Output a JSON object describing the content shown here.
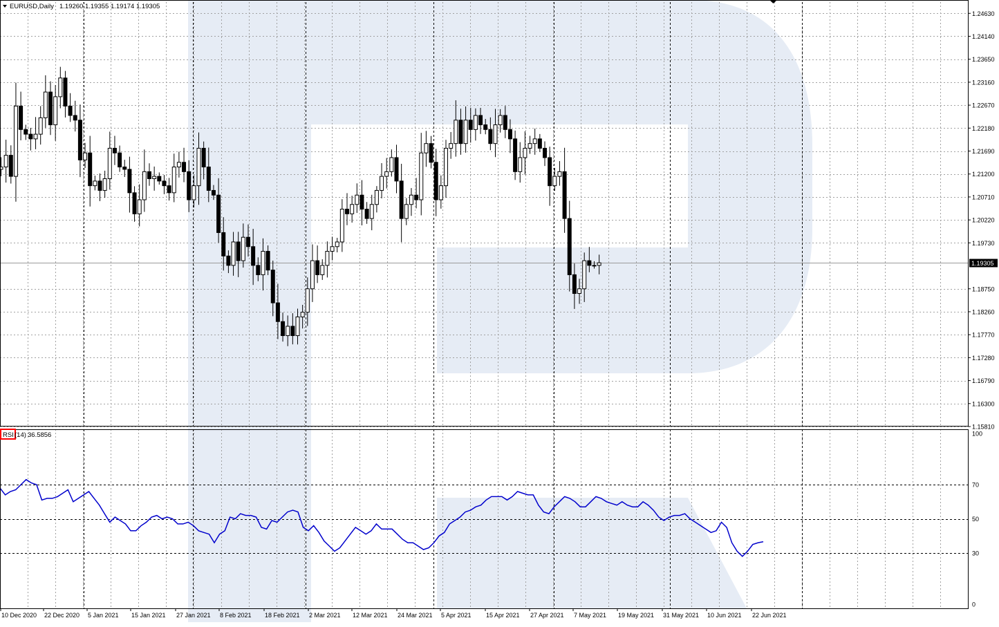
{
  "header": {
    "symbol": "EURUSD,Daily",
    "ohlc": "1.19260 1.19355 1.19174 1.19305"
  },
  "indicator": {
    "name": "RSI",
    "params": "(14)",
    "value": "36.5856"
  },
  "current_price_label": "1.19305",
  "colors": {
    "background": "#ffffff",
    "grid": "#a0a0a0",
    "candle": "#000000",
    "rsi_line": "#0000cc",
    "watermark": "#e6ecf5",
    "indicator_box": "#ff0000"
  },
  "chart_data": [
    {
      "type": "candlestick",
      "title": "EURUSD,Daily",
      "y_ticks": [
        1.2463,
        1.2414,
        1.2365,
        1.2316,
        1.2267,
        1.2218,
        1.2169,
        1.212,
        1.2071,
        1.2022,
        1.1973,
        1.1875,
        1.1826,
        1.1777,
        1.1728,
        1.1679,
        1.163,
        1.1581
      ],
      "y_tick_labels": [
        "1.24630",
        "1.24140",
        "1.23650",
        "1.23160",
        "1.22670",
        "1.22180",
        "1.21690",
        "1.21200",
        "1.20710",
        "1.20220",
        "1.19730",
        "1.18750",
        "1.18260",
        "1.17770",
        "1.17280",
        "1.16790",
        "1.16300",
        "1.15810"
      ],
      "ylim": [
        1.1581,
        1.2487
      ],
      "x_tick_labels": [
        "10 Dec 2020",
        "22 Dec 2020",
        "5 Jan 2021",
        "15 Jan 2021",
        "27 Jan 2021",
        "8 Feb 2021",
        "18 Feb 2021",
        "2 Mar 2021",
        "12 Mar 2021",
        "24 Mar 2021",
        "5 Apr 2021",
        "15 Apr 2021",
        "27 Apr 2021",
        "7 May 2021",
        "19 May 2021",
        "31 May 2021",
        "10 Jun 2021",
        "22 Jun 2021"
      ],
      "close_path": [
        1.213,
        1.2135,
        1.216,
        1.2115,
        1.2265,
        1.2215,
        1.2205,
        1.2195,
        1.2205,
        1.224,
        1.2295,
        1.2225,
        1.2285,
        1.2325,
        1.2265,
        1.2245,
        1.2235,
        1.215,
        1.2165,
        1.2095,
        1.2105,
        1.2085,
        1.211,
        1.2175,
        1.2165,
        1.2135,
        1.213,
        1.208,
        1.2035,
        1.2065,
        1.2125,
        1.211,
        1.2115,
        1.2105,
        1.2095,
        1.208,
        1.2135,
        1.2145,
        1.2125,
        1.2065,
        1.2095,
        1.2175,
        1.2135,
        1.2085,
        1.2075,
        1.1995,
        1.1945,
        1.1925,
        1.1975,
        1.1935,
        1.1985,
        1.1965,
        1.1925,
        1.1905,
        1.1955,
        1.1915,
        1.1845,
        1.1805,
        1.1775,
        1.1795,
        1.1775,
        1.1815,
        1.1825,
        1.1875,
        1.1935,
        1.1905,
        1.1925,
        1.1955,
        1.1965,
        1.1975,
        1.2045,
        1.2035,
        1.2055,
        1.2075,
        1.2045,
        1.2025,
        1.2055,
        1.2085,
        1.2115,
        1.2125,
        1.2155,
        1.2105,
        1.2025,
        1.2055,
        1.2075,
        1.2065,
        1.2165,
        1.2185,
        1.2145,
        1.2065,
        1.2095,
        1.2175,
        1.2185,
        1.2235,
        1.2185,
        1.2235,
        1.2215,
        1.2245,
        1.2225,
        1.2215,
        1.2185,
        1.2225,
        1.2245,
        1.2215,
        1.2195,
        1.2125,
        1.2155,
        1.2175,
        1.2185,
        1.2195,
        1.2175,
        1.2155,
        1.2095,
        1.2115,
        1.2125,
        1.2025,
        1.1905,
        1.1865,
        1.1875,
        1.1935,
        1.1925,
        1.1925,
        1.19305
      ]
    },
    {
      "type": "line",
      "title": "RSI(14) 36.5856",
      "series": [
        {
          "name": "RSI(14)",
          "values": [
            68,
            64,
            66,
            67,
            70,
            73,
            71,
            70,
            61,
            62,
            62,
            63,
            65,
            67,
            60,
            62,
            64,
            66,
            62,
            58,
            53,
            48,
            51,
            49,
            47,
            43,
            43,
            46,
            48,
            51,
            52,
            50,
            51,
            50,
            47,
            47,
            48,
            46,
            43,
            42,
            41,
            36,
            41,
            43,
            51,
            50,
            53,
            52,
            52,
            51,
            45,
            44,
            49,
            48,
            51,
            54,
            55,
            54,
            45,
            43,
            46,
            42,
            37,
            34,
            31,
            33,
            37,
            41,
            45,
            43,
            41,
            43,
            47,
            44,
            44,
            44,
            41,
            38,
            36,
            36,
            34,
            32,
            33,
            36,
            40,
            42,
            47,
            49,
            51,
            54,
            55,
            57,
            58,
            61,
            63,
            63,
            63,
            61,
            63,
            66,
            65,
            64,
            64,
            58,
            54,
            53,
            57,
            60,
            63,
            62,
            60,
            57,
            57,
            60,
            63,
            62,
            60,
            59,
            58,
            60,
            58,
            57,
            57,
            60,
            58,
            55,
            51,
            49,
            51,
            52,
            52,
            53,
            50,
            48,
            46,
            44,
            42,
            43,
            48,
            45,
            36,
            31,
            28,
            31,
            35,
            36,
            36.5856
          ]
        }
      ],
      "y_tick_labels": [
        "100",
        "70",
        "50",
        "30",
        "0"
      ],
      "levels": [
        70,
        50,
        30
      ],
      "ylim": [
        0,
        100
      ]
    }
  ]
}
